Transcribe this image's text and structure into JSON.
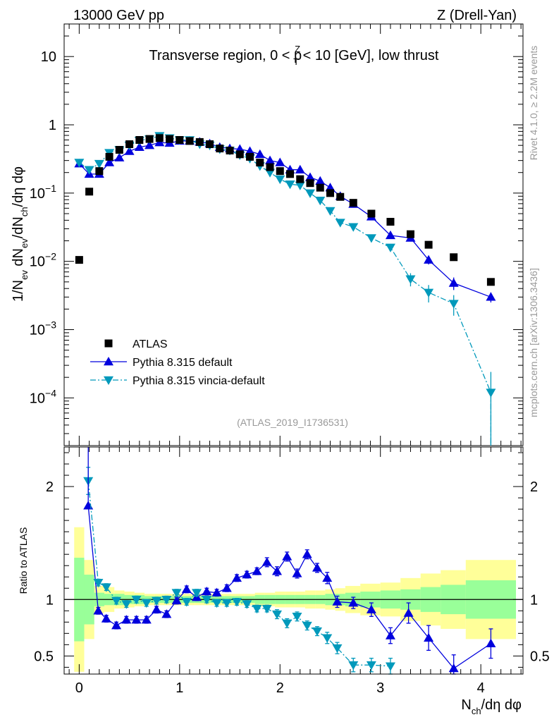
{
  "header": {
    "left": "13000 GeV pp",
    "right": "Z (Drell-Yan)"
  },
  "side_labels": {
    "rivet": "Rivet 4.1.0, ≥ 2.2M events",
    "mcplots": "mcplots.cern.ch [arXiv:1306.3436]"
  },
  "chart_data": [
    {
      "type": "scatter",
      "role": "main",
      "title": "Transverse region, 0 < p_T^Z < 10 [GeV], low thrust",
      "title_parts": {
        "prefix": "Transverse region, 0 < p",
        "sup": "Z",
        "sub": "T",
        "suffix": " < 10 [GeV], low thrust"
      },
      "analysis_label": "(ATLAS_2019_I1736531)",
      "ylabel": "1/N_ev dN_ev/dN_ch/dη dφ",
      "xlabel": "N_ch/dη dφ",
      "yscale": "log",
      "xlim": [
        -0.15,
        4.42
      ],
      "ylim": [
        2e-05,
        30
      ],
      "x_ticks": [
        0,
        1,
        2,
        3,
        4
      ],
      "x_tick_labels": [
        "0",
        "1",
        "2",
        "3",
        "4"
      ],
      "y_tick_labels": [
        {
          "value": 10,
          "mantissa": "10",
          "exp": ""
        },
        {
          "value": 1,
          "mantissa": "1",
          "exp": ""
        },
        {
          "value": 0.1,
          "mantissa": "10",
          "exp": "−1"
        },
        {
          "value": 0.01,
          "mantissa": "10",
          "exp": "−2"
        },
        {
          "value": 0.001,
          "mantissa": "10",
          "exp": "−3"
        },
        {
          "value": 0.0001,
          "mantissa": "10",
          "exp": "−4"
        }
      ],
      "legend": {
        "position": "lower-left",
        "entries": [
          {
            "label": "ATLAS",
            "marker": "square",
            "color": "#000000"
          },
          {
            "label": "Pythia 8.315 default",
            "marker": "triangle-up",
            "color": "#0000dd",
            "line": "solid"
          },
          {
            "label": "Pythia 8.315 vincia-default",
            "marker": "triangle-down",
            "color": "#0099bb",
            "line": "dashdot"
          }
        ]
      },
      "series": [
        {
          "name": "ATLAS",
          "x": [
            0.0,
            0.1,
            0.2,
            0.3,
            0.4,
            0.5,
            0.6,
            0.7,
            0.8,
            0.9,
            1.0,
            1.1,
            1.2,
            1.3,
            1.4,
            1.5,
            1.6,
            1.7,
            1.8,
            1.9,
            2.0,
            2.1,
            2.2,
            2.3,
            2.4,
            2.5,
            2.6,
            2.73,
            2.91,
            3.1,
            3.3,
            3.48,
            3.73,
            4.1
          ],
          "values": [
            0.0105,
            0.105,
            0.21,
            0.34,
            0.43,
            0.52,
            0.6,
            0.62,
            0.64,
            0.62,
            0.6,
            0.58,
            0.56,
            0.52,
            0.45,
            0.42,
            0.37,
            0.34,
            0.28,
            0.24,
            0.21,
            0.19,
            0.16,
            0.14,
            0.12,
            0.1,
            0.088,
            0.072,
            0.05,
            0.038,
            0.025,
            0.0175,
            0.0115,
            0.005
          ]
        },
        {
          "name": "Pythia 8.315 default",
          "x": [
            0.0,
            0.1,
            0.2,
            0.3,
            0.4,
            0.5,
            0.6,
            0.7,
            0.8,
            0.9,
            1.0,
            1.1,
            1.2,
            1.3,
            1.4,
            1.5,
            1.6,
            1.7,
            1.8,
            1.9,
            2.0,
            2.1,
            2.2,
            2.3,
            2.4,
            2.5,
            2.6,
            2.73,
            2.91,
            3.1,
            3.3,
            3.48,
            3.73,
            4.1
          ],
          "values": [
            0.27,
            0.19,
            0.19,
            0.28,
            0.33,
            0.41,
            0.47,
            0.5,
            0.55,
            0.54,
            0.58,
            0.58,
            0.56,
            0.53,
            0.47,
            0.45,
            0.44,
            0.41,
            0.37,
            0.3,
            0.28,
            0.22,
            0.22,
            0.17,
            0.15,
            0.12,
            0.09,
            0.069,
            0.045,
            0.024,
            0.022,
            0.0105,
            0.0048,
            0.003
          ],
          "err": [
            0,
            0,
            0,
            0,
            0,
            0,
            0,
            0,
            0,
            0,
            0,
            0,
            0,
            0,
            0,
            0,
            0,
            0,
            0,
            0,
            0,
            0,
            0,
            0,
            0,
            0,
            0,
            0,
            0,
            0.0015,
            0.0015,
            0.0015,
            0.001,
            0.0005
          ]
        },
        {
          "name": "Pythia 8.315 vincia-default",
          "x": [
            0.0,
            0.1,
            0.2,
            0.3,
            0.4,
            0.5,
            0.6,
            0.7,
            0.8,
            0.9,
            1.0,
            1.1,
            1.2,
            1.3,
            1.4,
            1.5,
            1.6,
            1.7,
            1.8,
            1.9,
            2.0,
            2.1,
            2.2,
            2.3,
            2.4,
            2.5,
            2.6,
            2.73,
            2.91,
            3.1,
            3.3,
            3.48,
            3.73,
            4.1
          ],
          "values": [
            0.28,
            0.22,
            0.27,
            0.39,
            0.43,
            0.5,
            0.59,
            0.62,
            0.69,
            0.64,
            0.6,
            0.6,
            0.52,
            0.5,
            0.44,
            0.42,
            0.36,
            0.32,
            0.25,
            0.2,
            0.16,
            0.135,
            0.13,
            0.1,
            0.078,
            0.055,
            0.037,
            0.032,
            0.022,
            0.016,
            0.0055,
            0.0035,
            0.0024,
            0.00012
          ],
          "err": [
            0,
            0,
            0,
            0,
            0,
            0,
            0,
            0,
            0,
            0,
            0,
            0,
            0,
            0,
            0,
            0,
            0,
            0,
            0,
            0,
            0,
            0,
            0,
            0,
            0,
            0,
            0,
            0,
            0,
            0.001,
            0.0012,
            0.001,
            0.0008,
            0.00012
          ]
        }
      ]
    },
    {
      "type": "scatter",
      "role": "ratio",
      "ylabel": "Ratio to ATLAS",
      "xlim": [
        -0.15,
        4.42
      ],
      "ylim": [
        0.34,
        2.35
      ],
      "y_ticks": [
        0.5,
        1,
        2
      ],
      "y_tick_labels": [
        "0.5",
        "1",
        "2"
      ],
      "reference_line": 1,
      "bands": {
        "edges": [
          -0.05,
          0.05,
          0.15,
          0.25,
          0.35,
          0.45,
          0.55,
          0.65,
          0.75,
          0.85,
          0.95,
          1.05,
          1.15,
          1.25,
          1.35,
          1.45,
          1.55,
          1.65,
          1.75,
          1.85,
          1.95,
          2.05,
          2.15,
          2.25,
          2.35,
          2.45,
          2.55,
          2.65,
          2.8,
          3.0,
          3.2,
          3.4,
          3.6,
          3.85,
          4.35
        ],
        "inner": [
          0.37,
          0.22,
          0.06,
          0.05,
          0.05,
          0.04,
          0.04,
          0.03,
          0.03,
          0.03,
          0.03,
          0.03,
          0.03,
          0.03,
          0.03,
          0.03,
          0.03,
          0.03,
          0.04,
          0.04,
          0.04,
          0.04,
          0.04,
          0.04,
          0.04,
          0.05,
          0.05,
          0.06,
          0.07,
          0.08,
          0.09,
          0.11,
          0.13,
          0.17,
          0.2
        ],
        "outer": [
          0.64,
          0.35,
          0.12,
          0.11,
          0.08,
          0.07,
          0.06,
          0.05,
          0.05,
          0.05,
          0.05,
          0.05,
          0.05,
          0.05,
          0.05,
          0.05,
          0.05,
          0.05,
          0.06,
          0.06,
          0.07,
          0.07,
          0.07,
          0.08,
          0.08,
          0.09,
          0.1,
          0.12,
          0.14,
          0.15,
          0.19,
          0.23,
          0.26,
          0.35,
          0.42
        ],
        "inner_color": "#99ff99",
        "outer_color": "#ffff99"
      },
      "series": [
        {
          "name": "Pythia 8.315 default",
          "x": [
            0.09,
            0.19,
            0.27,
            0.37,
            0.47,
            0.57,
            0.67,
            0.77,
            0.87,
            0.97,
            1.07,
            1.17,
            1.27,
            1.37,
            1.47,
            1.57,
            1.67,
            1.77,
            1.87,
            1.97,
            2.07,
            2.17,
            2.27,
            2.37,
            2.47,
            2.57,
            2.73,
            2.91,
            3.1,
            3.28,
            3.48,
            3.73,
            4.1
          ],
          "values": [
            1.83,
            0.9,
            0.83,
            0.77,
            0.82,
            0.82,
            0.82,
            0.91,
            0.87,
            0.99,
            1.09,
            1.02,
            1.07,
            1.06,
            1.1,
            1.19,
            1.22,
            1.25,
            1.33,
            1.25,
            1.38,
            1.23,
            1.4,
            1.28,
            1.19,
            0.98,
            0.97,
            0.91,
            0.68,
            0.88,
            0.66,
            0.39,
            0.61
          ],
          "err": [
            0,
            0.03,
            0.03,
            0.03,
            0.03,
            0.03,
            0.03,
            0.03,
            0.03,
            0.03,
            0.03,
            0.03,
            0.03,
            0.03,
            0.03,
            0.03,
            0.03,
            0.03,
            0.04,
            0.04,
            0.04,
            0.04,
            0.04,
            0.04,
            0.05,
            0.05,
            0.05,
            0.06,
            0.07,
            0.09,
            0.11,
            0.12,
            0.13
          ]
        },
        {
          "name": "Pythia 8.315 vincia-default",
          "x": [
            0.09,
            0.19,
            0.27,
            0.37,
            0.47,
            0.57,
            0.67,
            0.77,
            0.87,
            0.97,
            1.07,
            1.17,
            1.27,
            1.37,
            1.47,
            1.57,
            1.67,
            1.77,
            1.87,
            1.97,
            2.07,
            2.17,
            2.27,
            2.37,
            2.47,
            2.57,
            2.73,
            2.91,
            3.1
          ],
          "values": [
            2.05,
            1.15,
            1.11,
            0.99,
            0.96,
            1.0,
            0.97,
            0.99,
            1.0,
            1.06,
            0.98,
            1.06,
            1.0,
            0.97,
            0.97,
            0.98,
            0.96,
            0.92,
            0.92,
            0.87,
            0.79,
            0.85,
            0.77,
            0.72,
            0.66,
            0.57,
            0.42,
            0.42,
            0.41
          ],
          "err": [
            0.12,
            0.03,
            0.03,
            0.03,
            0.03,
            0.03,
            0.03,
            0.03,
            0.03,
            0.03,
            0.03,
            0.03,
            0.03,
            0.03,
            0.03,
            0.03,
            0.03,
            0.03,
            0.03,
            0.04,
            0.04,
            0.04,
            0.04,
            0.04,
            0.05,
            0.05,
            0.06,
            0.06,
            0.07
          ]
        }
      ]
    }
  ]
}
